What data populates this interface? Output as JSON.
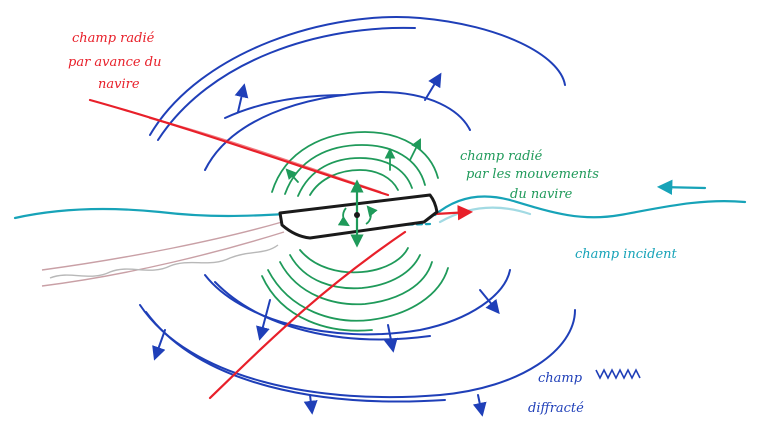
{
  "labels": {
    "radiated_forward_line1": "champ radié",
    "radiated_forward_line2": "par avance du",
    "radiated_forward_line3": "navire",
    "radiated_motion_line1": "champ radié",
    "radiated_motion_line2": "par les mouvements",
    "radiated_motion_line3": "du navire",
    "incident": "champ incident",
    "diffracted_line1": "champ",
    "diffracted_line2": "diffracté"
  },
  "colors": {
    "forward_field": "#e8202a",
    "motion_field": "#1f9a5a",
    "incident_field": "#17a3b8",
    "diffracted_field": "#1f3fb8",
    "ship": "#1a1a1a",
    "wake": "#c9a0a6"
  },
  "icons": {
    "ship": "ship-hull-side-view",
    "heave_arrow": "double-arrow-vertical",
    "rotation_arrow": "rotation-arrows"
  }
}
